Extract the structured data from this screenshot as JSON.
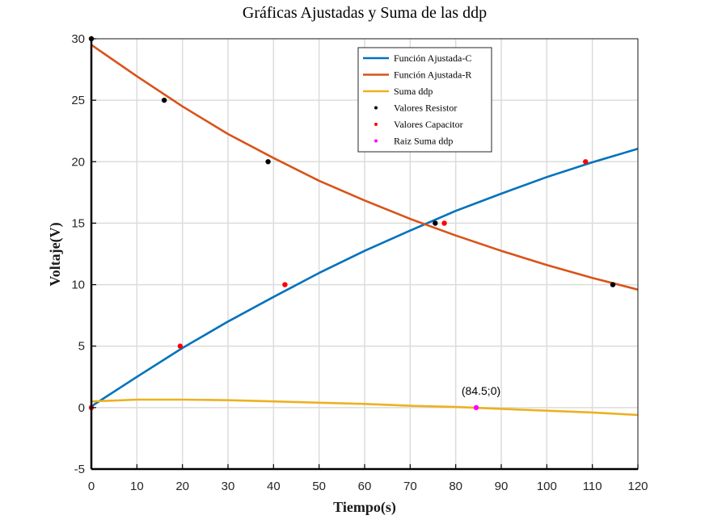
{
  "chart_data": {
    "type": "line",
    "title": "Gráficas Ajustadas y Suma de las ddp",
    "xlabel": "Tiempo(s)",
    "ylabel": "Voltaje(V)",
    "xlim": [
      0,
      120
    ],
    "ylim": [
      -5,
      30
    ],
    "xticks": [
      0,
      10,
      20,
      30,
      40,
      50,
      60,
      70,
      80,
      90,
      100,
      110,
      120
    ],
    "yticks": [
      -5,
      0,
      5,
      10,
      15,
      20,
      25,
      30
    ],
    "grid": true,
    "legend_position": "top-center",
    "series": [
      {
        "name": "Función Ajustada-C",
        "kind": "line",
        "color": "#0072BD",
        "x": [
          0,
          10,
          20,
          30,
          40,
          50,
          60,
          70,
          80,
          90,
          100,
          110,
          120
        ],
        "y": [
          0.1,
          2.5,
          4.85,
          7.0,
          9.0,
          10.95,
          12.75,
          14.4,
          16.0,
          17.4,
          18.75,
          19.95,
          21.05
        ]
      },
      {
        "name": "Función Ajustada-R",
        "kind": "line",
        "color": "#D95319",
        "x": [
          0,
          10,
          20,
          30,
          40,
          50,
          60,
          70,
          80,
          90,
          100,
          110,
          120
        ],
        "y": [
          29.5,
          26.95,
          24.5,
          22.25,
          20.3,
          18.45,
          16.85,
          15.35,
          14.0,
          12.75,
          11.6,
          10.55,
          9.6
        ]
      },
      {
        "name": "Suma ddp",
        "kind": "line",
        "color": "#EDB120",
        "x": [
          0,
          10,
          20,
          30,
          40,
          50,
          60,
          70,
          80,
          90,
          100,
          110,
          120
        ],
        "y": [
          0.5,
          0.65,
          0.65,
          0.6,
          0.5,
          0.4,
          0.3,
          0.15,
          0.05,
          -0.1,
          -0.25,
          -0.4,
          -0.6
        ]
      },
      {
        "name": "Valores Resistor",
        "kind": "scatter",
        "color": "#000000",
        "x": [
          0,
          16,
          38.8,
          75.5,
          114.5
        ],
        "y": [
          30,
          25,
          20,
          15,
          10
        ]
      },
      {
        "name": "Valores Capacitor",
        "kind": "scatter",
        "color": "#ff0000",
        "x": [
          0,
          19.5,
          42.5,
          77.5,
          108.5
        ],
        "y": [
          0,
          5,
          10,
          15,
          20
        ]
      },
      {
        "name": "Raiz Suma ddp",
        "kind": "scatter",
        "color": "#ff00ff",
        "x": [
          84.5
        ],
        "y": [
          0
        ]
      }
    ],
    "annotations": [
      {
        "text": "(84.5;0)",
        "x": 84.5,
        "y": 0
      }
    ]
  }
}
